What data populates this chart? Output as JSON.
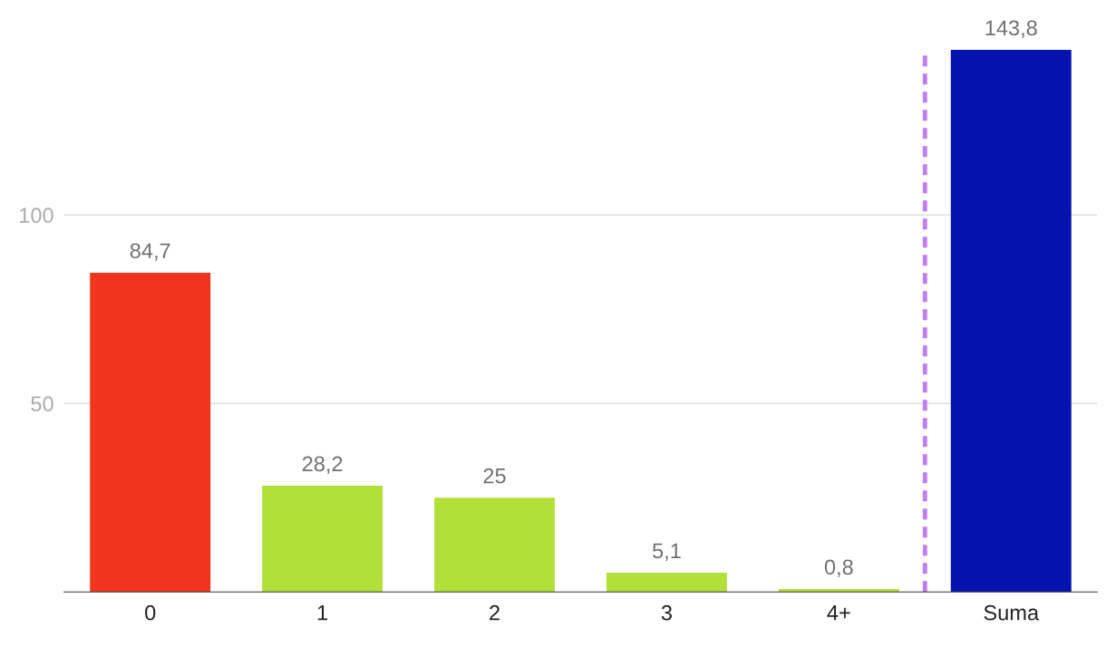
{
  "chart_data": {
    "type": "bar",
    "categories": [
      "0",
      "1",
      "2",
      "3",
      "4+",
      "Suma"
    ],
    "values": [
      84.7,
      28.2,
      25,
      5.1,
      0.8,
      143.8
    ],
    "colors": [
      "#f0341e",
      "#b2e03a",
      "#b2e03a",
      "#b2e03a",
      "#b2e03a",
      "#0513ae"
    ],
    "value_labels": [
      "84,7",
      "28,2",
      "25",
      "5,1",
      "0,8",
      "143,8"
    ],
    "ylim": [
      0,
      143.8
    ],
    "yticks": [
      50,
      100
    ],
    "grid": "y"
  }
}
